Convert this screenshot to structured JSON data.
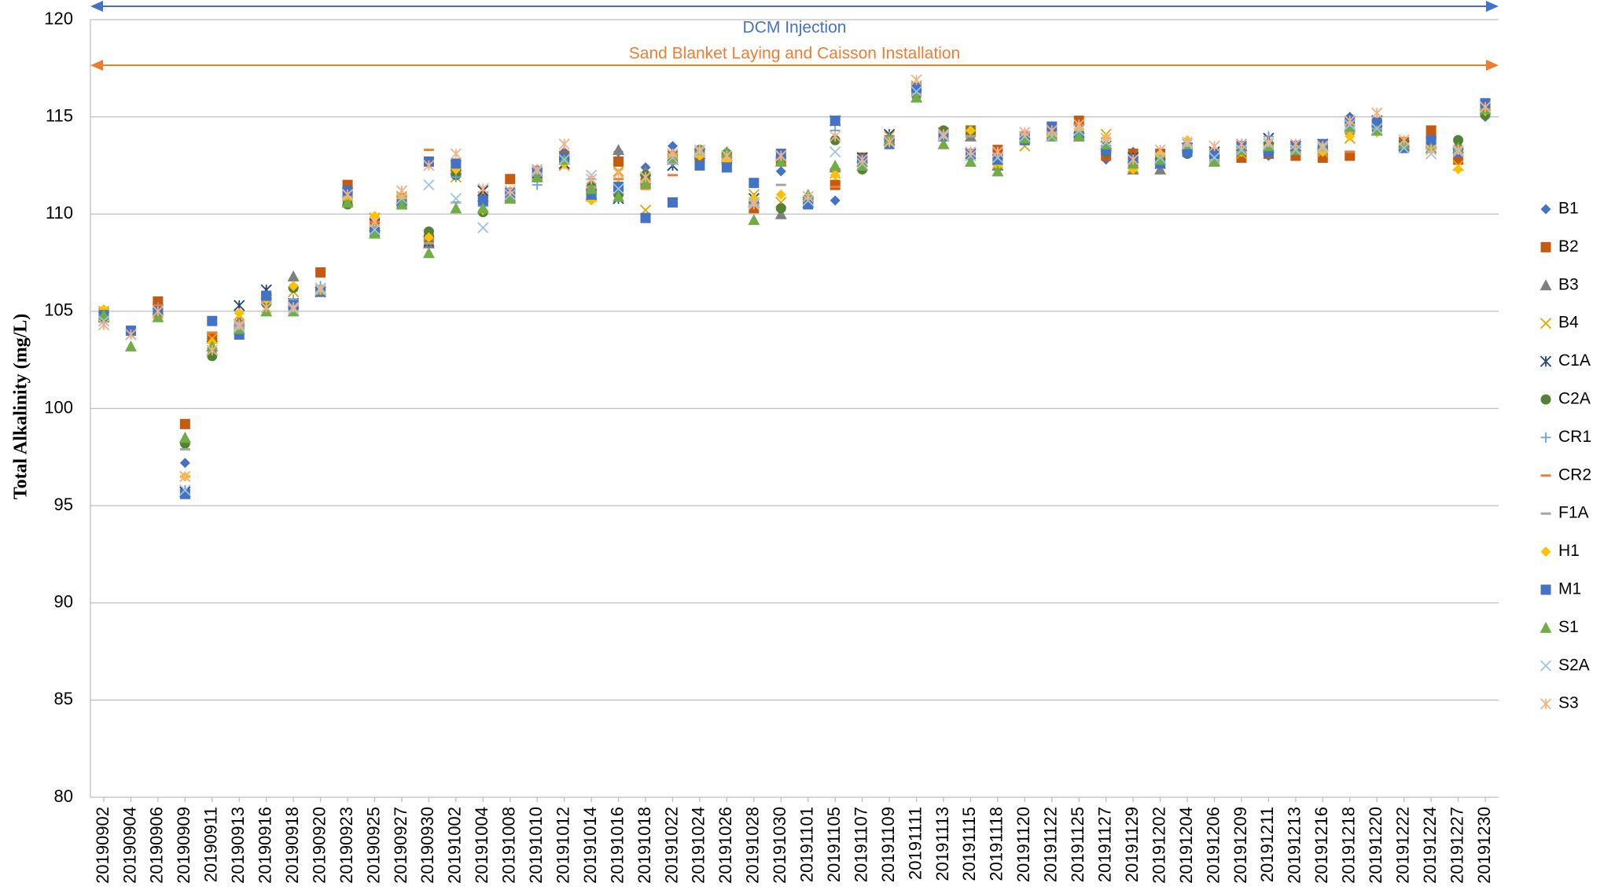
{
  "chart_data": {
    "type": "scatter",
    "y_label": "Total Alkalinity (mg/L)",
    "annotations": [
      {
        "text": "DCM Injection",
        "color": "#4472c4"
      },
      {
        "text": "Sand Blanket Laying and Caisson Installation",
        "color": "#ed7d31"
      }
    ],
    "categories": [
      "20190902",
      "20190904",
      "20190906",
      "20190909",
      "20190911",
      "20190913",
      "20190916",
      "20190918",
      "20190920",
      "20190923",
      "20190925",
      "20190927",
      "20190930",
      "20191002",
      "20191004",
      "20191008",
      "20191010",
      "20191012",
      "20191014",
      "20191016",
      "20191018",
      "20191022",
      "20191024",
      "20191026",
      "20191028",
      "20191030",
      "20191101",
      "20191105",
      "20191107",
      "20191109",
      "20191111",
      "20191113",
      "20191115",
      "20191118",
      "20191120",
      "20191122",
      "20191125",
      "20191127",
      "20191129",
      "20191202",
      "20191204",
      "20191206",
      "20191209",
      "20191211",
      "20191213",
      "20191216",
      "20191218",
      "20191220",
      "20191222",
      "20191224",
      "20191227",
      "20191230"
    ],
    "ylim": [
      80,
      120
    ],
    "yticks": [
      80,
      85,
      90,
      95,
      100,
      105,
      110,
      115,
      120
    ],
    "grid": true,
    "series": [
      {
        "name": "B1",
        "color": "#4472c4",
        "marker": "diamond",
        "values": [
          104.7,
          null,
          105.2,
          97.2,
          103.0,
          104.0,
          105.6,
          105.3,
          106.1,
          111.0,
          109.3,
          110.7,
          112.6,
          112.4,
          110.8,
          110.9,
          112.3,
          113.2,
          111.3,
          113.2,
          112.4,
          113.5,
          112.8,
          113.2,
          110.3,
          112.2,
          110.7,
          110.7,
          112.7,
          113.6,
          116.4,
          114.2,
          112.9,
          112.9,
          113.9,
          114.3,
          114.2,
          112.8,
          113.2,
          112.9,
          113.6,
          113.0,
          113.4,
          113.0,
          113.4,
          113.2,
          115.0,
          114.6,
          113.6,
          113.6,
          113.1,
          115.0
        ]
      },
      {
        "name": "B2",
        "color": "#c55a11",
        "marker": "square",
        "values": [
          104.9,
          null,
          105.5,
          99.2,
          103.7,
          104.3,
          105.7,
          105.4,
          107.0,
          111.5,
          109.6,
          110.8,
          108.7,
          112.2,
          110.9,
          111.8,
          111.9,
          113.0,
          110.9,
          112.7,
          111.6,
          113.0,
          113.0,
          112.8,
          110.3,
          112.7,
          110.7,
          111.5,
          112.9,
          113.8,
          116.5,
          114.2,
          114.3,
          113.3,
          114.0,
          114.1,
          114.8,
          113.0,
          113.1,
          113.1,
          113.3,
          112.9,
          112.9,
          113.1,
          113.0,
          112.9,
          113.0,
          114.6,
          113.7,
          114.3,
          112.8,
          115.4
        ]
      },
      {
        "name": "B3",
        "color": "#7f7f7f",
        "marker": "triangle",
        "values": [
          104.8,
          null,
          105.0,
          98.5,
          103.0,
          104.5,
          105.9,
          106.8,
          106.1,
          110.7,
          109.4,
          110.8,
          108.5,
          112.3,
          110.9,
          110.9,
          112.2,
          112.8,
          111.5,
          113.3,
          112.2,
          112.8,
          113.2,
          113.0,
          110.6,
          110.0,
          110.9,
          112.4,
          112.7,
          113.8,
          116.0,
          114.0,
          114.0,
          112.5,
          114.1,
          114.0,
          114.2,
          113.6,
          112.3,
          112.3,
          113.5,
          112.7,
          113.5,
          113.4,
          113.5,
          113.5,
          114.5,
          114.3,
          113.7,
          113.6,
          113.6,
          115.6
        ]
      },
      {
        "name": "B4",
        "color": "#e0a800",
        "marker": "x",
        "values": [
          105.0,
          null,
          104.9,
          96.5,
          103.6,
          104.8,
          105.6,
          106.0,
          106.0,
          110.9,
          109.8,
          110.9,
          108.9,
          111.9,
          111.2,
          110.8,
          112.0,
          112.5,
          110.9,
          112.2,
          110.2,
          113.1,
          113.1,
          112.8,
          111.0,
          110.6,
          110.6,
          112.1,
          112.7,
          114.0,
          116.6,
          114.1,
          114.2,
          112.6,
          113.5,
          114.0,
          114.4,
          114.1,
          112.4,
          112.9,
          113.4,
          112.8,
          113.1,
          113.3,
          113.3,
          113.2,
          113.9,
          114.3,
          113.5,
          113.4,
          112.5,
          115.4
        ]
      },
      {
        "name": "C1A",
        "color": "#264478",
        "marker": "asterisk",
        "values": [
          104.7,
          103.8,
          105.1,
          95.7,
          103.2,
          105.3,
          106.1,
          105.4,
          106.0,
          111.1,
          109.5,
          110.7,
          108.6,
          112.5,
          111.2,
          111.0,
          112.1,
          112.6,
          111.0,
          110.8,
          111.8,
          112.5,
          113.1,
          112.9,
          110.8,
          113.0,
          110.6,
          114.8,
          112.9,
          114.1,
          116.3,
          114.1,
          113.1,
          112.8,
          114.0,
          114.3,
          114.4,
          113.5,
          112.9,
          112.6,
          113.4,
          113.2,
          113.6,
          113.9,
          113.5,
          113.6,
          114.6,
          114.8,
          113.5,
          113.7,
          113.2,
          115.5
        ]
      },
      {
        "name": "C2A",
        "color": "#548235",
        "marker": "circle",
        "values": [
          104.6,
          null,
          105.0,
          98.2,
          102.7,
          104.1,
          105.4,
          106.2,
          106.1,
          110.5,
          109.3,
          110.6,
          109.1,
          112.0,
          110.1,
          110.8,
          112.1,
          112.9,
          111.4,
          111.0,
          112.0,
          112.8,
          113.3,
          113.1,
          110.6,
          110.3,
          110.8,
          113.8,
          112.3,
          113.8,
          116.1,
          114.3,
          114.3,
          112.6,
          113.9,
          114.2,
          114.0,
          113.2,
          112.5,
          112.8,
          113.1,
          112.9,
          113.3,
          113.6,
          113.3,
          113.3,
          114.3,
          114.3,
          113.6,
          113.6,
          113.8,
          115.1
        ]
      },
      {
        "name": "CR1",
        "color": "#6f9fd8",
        "marker": "plus",
        "values": [
          104.6,
          null,
          105.2,
          95.8,
          103.0,
          104.3,
          105.6,
          105.6,
          106.3,
          110.8,
          109.2,
          110.6,
          108.7,
          111.9,
          110.4,
          111.1,
          111.5,
          112.7,
          111.8,
          111.4,
          111.7,
          112.7,
          112.9,
          112.9,
          110.5,
          112.8,
          110.8,
          114.3,
          112.8,
          114.0,
          116.2,
          114.0,
          113.2,
          113.0,
          114.1,
          114.0,
          114.2,
          113.4,
          112.6,
          113.1,
          113.6,
          113.0,
          113.6,
          114.0,
          113.6,
          113.4,
          114.5,
          114.8,
          113.5,
          113.4,
          113.4,
          115.5
        ]
      },
      {
        "name": "CR2",
        "color": "#ed7d31",
        "marker": "dash",
        "values": [
          104.9,
          null,
          105.3,
          96.5,
          103.9,
          104.4,
          105.9,
          105.5,
          106.2,
          111.3,
          109.6,
          110.9,
          113.3,
          112.6,
          110.5,
          111.3,
          112.4,
          113.0,
          111.3,
          111.8,
          111.3,
          112.0,
          113.1,
          112.9,
          110.8,
          112.9,
          110.6,
          111.4,
          112.8,
          113.7,
          116.4,
          114.1,
          114.3,
          113.1,
          114.2,
          114.2,
          114.6,
          113.2,
          112.9,
          112.8,
          113.4,
          112.9,
          113.1,
          113.4,
          113.4,
          113.1,
          113.2,
          114.5,
          113.5,
          114.0,
          113.0,
          115.5
        ]
      },
      {
        "name": "F1A",
        "color": "#a5a5a5",
        "marker": "dash",
        "values": [
          104.7,
          null,
          105.1,
          97.9,
          103.1,
          104.2,
          105.5,
          105.4,
          106.1,
          110.9,
          109.4,
          110.7,
          108.5,
          110.6,
          110.7,
          110.9,
          111.8,
          112.6,
          111.4,
          111.2,
          111.6,
          112.6,
          113.0,
          112.8,
          110.5,
          111.5,
          110.6,
          112.3,
          112.6,
          113.7,
          116.2,
          113.9,
          114.0,
          112.7,
          113.9,
          114.0,
          114.2,
          113.4,
          112.6,
          112.7,
          113.2,
          112.8,
          113.2,
          113.2,
          113.2,
          113.2,
          114.2,
          114.4,
          113.6,
          113.5,
          113.3,
          115.4
        ]
      },
      {
        "name": "H1",
        "color": "#ffc000",
        "marker": "diamond",
        "values": [
          105.1,
          null,
          105.0,
          96.5,
          103.4,
          104.9,
          105.6,
          106.3,
          106.1,
          110.8,
          109.9,
          110.8,
          108.8,
          112.3,
          110.2,
          110.8,
          112.0,
          112.6,
          110.7,
          111.5,
          111.7,
          113.0,
          113.0,
          112.7,
          110.8,
          111.0,
          110.7,
          112.0,
          112.7,
          113.8,
          116.5,
          114.0,
          114.3,
          112.5,
          113.8,
          114.0,
          114.3,
          113.9,
          112.3,
          113.0,
          113.8,
          112.9,
          113.2,
          113.3,
          113.3,
          113.2,
          114.0,
          114.2,
          113.6,
          113.4,
          112.3,
          115.3
        ]
      },
      {
        "name": "M1",
        "color": "#4472c4",
        "marker": "square",
        "values": [
          104.8,
          104.0,
          105.0,
          95.6,
          104.5,
          103.8,
          105.8,
          105.3,
          106.0,
          111.2,
          109.0,
          110.5,
          112.7,
          112.6,
          110.7,
          111.1,
          112.2,
          112.9,
          111.0,
          111.4,
          109.8,
          110.6,
          112.5,
          112.4,
          111.6,
          113.1,
          110.5,
          114.8,
          112.8,
          113.6,
          116.5,
          114.0,
          113.1,
          112.8,
          113.8,
          114.5,
          114.0,
          113.3,
          112.8,
          112.6,
          113.2,
          113.1,
          113.5,
          113.2,
          113.5,
          113.6,
          114.8,
          114.7,
          113.4,
          113.8,
          113.2,
          115.7
        ]
      },
      {
        "name": "S1",
        "color": "#70ad47",
        "marker": "triangle",
        "values": [
          104.8,
          103.2,
          104.7,
          98.5,
          103.2,
          104.1,
          105.0,
          105.0,
          106.1,
          110.6,
          109.0,
          110.5,
          108.0,
          110.3,
          110.3,
          110.8,
          111.9,
          112.8,
          111.3,
          110.9,
          111.6,
          112.9,
          113.3,
          113.2,
          109.7,
          112.7,
          111.0,
          112.5,
          112.5,
          113.8,
          116.0,
          113.6,
          112.7,
          112.2,
          113.9,
          114.0,
          114.0,
          113.6,
          112.6,
          112.8,
          113.6,
          112.7,
          113.3,
          113.5,
          113.3,
          113.5,
          114.5,
          114.3,
          113.6,
          113.4,
          113.4,
          115.4
        ]
      },
      {
        "name": "S2A",
        "color": "#9dc3e6",
        "marker": "x",
        "values": [
          104.5,
          null,
          105.0,
          95.8,
          103.0,
          104.2,
          105.2,
          105.1,
          106.2,
          111.0,
          109.2,
          110.8,
          111.5,
          110.8,
          109.3,
          111.0,
          112.2,
          112.8,
          112.0,
          111.3,
          111.9,
          112.9,
          113.2,
          113.0,
          110.6,
          113.0,
          110.7,
          113.2,
          112.6,
          113.7,
          116.3,
          114.0,
          113.0,
          112.9,
          114.0,
          114.0,
          114.3,
          113.7,
          112.8,
          112.9,
          113.6,
          112.9,
          113.3,
          113.6,
          113.3,
          113.4,
          114.6,
          114.4,
          113.4,
          113.1,
          113.2,
          115.5
        ]
      },
      {
        "name": "S3",
        "color": "#f4b183",
        "marker": "asterisk",
        "values": [
          104.3,
          103.8,
          105.0,
          96.5,
          103.0,
          104.3,
          105.2,
          105.2,
          106.1,
          111.0,
          109.6,
          111.2,
          112.5,
          113.1,
          111.3,
          111.2,
          112.3,
          113.6,
          111.8,
          112.1,
          111.9,
          113.1,
          113.3,
          113.0,
          110.5,
          113.0,
          110.9,
          114.0,
          112.8,
          113.7,
          116.9,
          114.1,
          113.2,
          113.2,
          114.2,
          114.3,
          114.6,
          113.9,
          112.8,
          113.3,
          113.7,
          113.5,
          113.6,
          113.7,
          113.6,
          113.5,
          114.8,
          115.2,
          113.8,
          113.3,
          113.3,
          115.5
        ]
      }
    ]
  }
}
